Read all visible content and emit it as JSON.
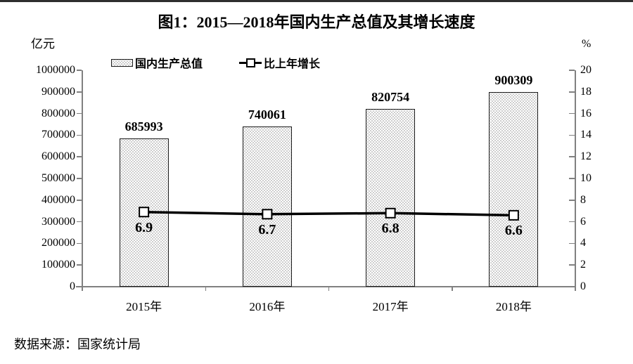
{
  "page": {
    "source": "数据来源：国家统计局"
  },
  "chart_data": {
    "type": "bar",
    "subtype": "bar-line-combo",
    "title": "图1：2015—2018年国内生产总值及其增长速度",
    "categories": [
      "2015年",
      "2016年",
      "2017年",
      "2018年"
    ],
    "series": [
      {
        "name": "国内生产总值",
        "type": "bar",
        "axis": "left",
        "unit": "亿元",
        "values": [
          685993,
          740061,
          820754,
          900309
        ]
      },
      {
        "name": "比上年增长",
        "type": "line",
        "axis": "right",
        "unit": "%",
        "values": [
          6.9,
          6.7,
          6.8,
          6.6
        ]
      }
    ],
    "left_axis": {
      "label": "亿元",
      "min": 0,
      "max": 1000000,
      "step": 100000
    },
    "right_axis": {
      "label": "%",
      "min": 0,
      "max": 20,
      "step": 2
    },
    "legend_position": "top",
    "grid": false,
    "colors": {
      "bar_fill_dot": "#bdbdbd",
      "bar_border": "#1c1c1c",
      "line": "#000000",
      "axis": "#808080",
      "text": "#000000"
    }
  }
}
